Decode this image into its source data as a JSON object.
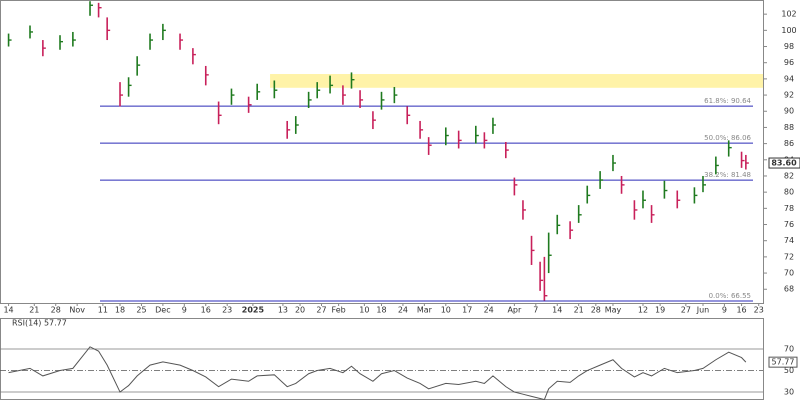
{
  "chart_data": [
    {
      "type": "ohlc",
      "x": [
        0,
        5,
        8,
        12,
        15,
        19,
        21,
        23,
        26,
        28,
        30,
        33,
        36,
        40,
        43,
        46,
        49,
        52,
        56,
        58,
        62,
        65,
        67,
        70,
        72,
        75,
        78,
        80,
        82,
        85,
        87,
        90,
        93,
        96,
        98,
        102,
        105,
        109,
        111,
        113,
        116,
        118,
        120,
        122,
        124,
        125,
        126,
        128,
        131,
        133,
        135,
        138,
        141,
        143,
        146,
        148,
        150,
        153,
        156,
        160,
        162,
        165,
        168,
        171,
        172
      ],
      "low": [
        98.0,
        99.0,
        96.8,
        97.6,
        98.0,
        101.8,
        101.6,
        98.8,
        90.6,
        91.8,
        94.4,
        97.6,
        98.8,
        97.6,
        95.8,
        93.2,
        88.4,
        90.8,
        89.8,
        91.4,
        91.6,
        86.6,
        87.2,
        90.4,
        91.6,
        92.2,
        90.8,
        92.8,
        90.4,
        87.8,
        90.2,
        91.0,
        88.4,
        86.6,
        84.6,
        85.8,
        85.4,
        86.0,
        85.4,
        87.2,
        84.2,
        79.6,
        76.6,
        71.0,
        67.8,
        66.6,
        70.0,
        74.8,
        74.2,
        76.2,
        78.6,
        80.4,
        82.6,
        79.8,
        76.6,
        78.0,
        76.2,
        79.2,
        78.0,
        78.6,
        80.0,
        82.2,
        84.4,
        83.0,
        82.8
      ],
      "high": [
        99.6,
        100.6,
        98.8,
        99.4,
        99.8,
        103.6,
        103.4,
        101.6,
        93.6,
        94.2,
        96.8,
        99.6,
        100.8,
        99.6,
        97.8,
        95.6,
        91.2,
        92.8,
        91.8,
        93.4,
        93.8,
        88.8,
        89.4,
        92.4,
        93.6,
        94.4,
        93.2,
        94.8,
        92.6,
        90.0,
        92.4,
        93.0,
        90.6,
        88.8,
        86.8,
        88.0,
        87.6,
        88.2,
        87.4,
        89.2,
        86.2,
        81.8,
        79.0,
        74.6,
        71.4,
        72.0,
        75.0,
        77.2,
        76.4,
        78.4,
        80.8,
        82.6,
        84.6,
        82.0,
        79.0,
        80.2,
        78.4,
        81.4,
        80.2,
        80.6,
        82.0,
        84.4,
        86.4,
        85.0,
        84.6
      ],
      "close": [
        98.8,
        99.8,
        97.8,
        98.6,
        98.8,
        103.1,
        102.8,
        100,
        92,
        93.2,
        95.7,
        98.8,
        100,
        98.8,
        97,
        94.5,
        89.5,
        92,
        90.8,
        92.4,
        92.6,
        87.7,
        88.3,
        91.4,
        92.6,
        93.2,
        92,
        93.9,
        91.4,
        88.9,
        91.4,
        92,
        89.5,
        87.7,
        85.8,
        87,
        86.4,
        87,
        86.4,
        88.3,
        85.2,
        80.9,
        77.8,
        72.8,
        69.1,
        67.2,
        72.2,
        75.9,
        75.3,
        77.2,
        79.6,
        81.5,
        83.6,
        80.9,
        77.8,
        79,
        77.2,
        80.2,
        79,
        79.6,
        80.9,
        83.3,
        85.5,
        83.9,
        83.6
      ],
      "up_color": "#1f7a1f",
      "down_color": "#c8205a",
      "xlim": [
        -2,
        176
      ],
      "ylim": [
        66.3,
        103.75
      ],
      "yticks": [
        68,
        70,
        72,
        74,
        76,
        78,
        80,
        82,
        84,
        86,
        88,
        90,
        92,
        94,
        96,
        98,
        100,
        102
      ],
      "xticks": [
        {
          "value": 0,
          "label": "14"
        },
        {
          "value": 6,
          "label": "21"
        },
        {
          "value": 11,
          "label": "28"
        },
        {
          "value": 16,
          "label": "Nov"
        },
        {
          "value": 22,
          "label": "11"
        },
        {
          "value": 26,
          "label": "18"
        },
        {
          "value": 31,
          "label": "25"
        },
        {
          "value": 36,
          "label": "Dec"
        },
        {
          "value": 41,
          "label": "9"
        },
        {
          "value": 46,
          "label": "16"
        },
        {
          "value": 51,
          "label": "23"
        },
        {
          "value": 57,
          "label": "2025"
        },
        {
          "value": 64,
          "label": "13"
        },
        {
          "value": 68,
          "label": "20"
        },
        {
          "value": 73,
          "label": "27"
        },
        {
          "value": 77,
          "label": "Feb"
        },
        {
          "value": 83,
          "label": "10"
        },
        {
          "value": 87,
          "label": "18"
        },
        {
          "value": 92,
          "label": "24"
        },
        {
          "value": 97,
          "label": "Mar"
        },
        {
          "value": 102,
          "label": "10"
        },
        {
          "value": 107,
          "label": "17"
        },
        {
          "value": 112,
          "label": "24"
        },
        {
          "value": 118,
          "label": "Apr"
        },
        {
          "value": 123,
          "label": "7"
        },
        {
          "value": 128,
          "label": "14"
        },
        {
          "value": 133,
          "label": "21"
        },
        {
          "value": 137,
          "label": "28"
        },
        {
          "value": 141,
          "label": "May"
        },
        {
          "value": 148,
          "label": "12"
        },
        {
          "value": 152,
          "label": "19"
        },
        {
          "value": 158,
          "label": "27"
        },
        {
          "value": 162,
          "label": "Jun"
        },
        {
          "value": 167,
          "label": "9"
        },
        {
          "value": 171,
          "label": "16"
        },
        {
          "value": 175,
          "label": "23"
        }
      ],
      "levels": [
        {
          "value": 90.64,
          "label": "61.8%: 90.64"
        },
        {
          "value": 86.06,
          "label": "50.0%: 86.06"
        },
        {
          "value": 81.48,
          "label": "38.2%: 81.48"
        },
        {
          "value": 66.55,
          "label": "0.0%: 66.55"
        }
      ],
      "level_color": "#2a2ab8",
      "zone": [
        92.9,
        94.6
      ],
      "zone_x": [
        61,
        176
      ],
      "zone_color": "#fff3a8",
      "last_price": {
        "value": 83.6,
        "label": "83.60"
      }
    },
    {
      "type": "line",
      "title": "RSI(14) 57.77",
      "x": [
        0,
        5,
        8,
        12,
        15,
        19,
        21,
        23,
        26,
        28,
        30,
        33,
        36,
        40,
        43,
        46,
        49,
        52,
        56,
        58,
        62,
        65,
        67,
        70,
        72,
        75,
        78,
        80,
        82,
        85,
        87,
        90,
        93,
        96,
        98,
        102,
        105,
        109,
        111,
        113,
        116,
        118,
        120,
        122,
        124,
        125,
        126,
        128,
        131,
        133,
        135,
        138,
        141,
        143,
        146,
        148,
        150,
        153,
        156,
        160,
        162,
        165,
        168,
        171,
        172
      ],
      "values": [
        48,
        52,
        45,
        50,
        52,
        72,
        68,
        55,
        30,
        36,
        45,
        55,
        58,
        55,
        50,
        44,
        35,
        42,
        40,
        45,
        46,
        35,
        38,
        47,
        50,
        52,
        48,
        54,
        47,
        40,
        47,
        50,
        43,
        38,
        33,
        38,
        37,
        40,
        38,
        45,
        35,
        30,
        28,
        26,
        24,
        23,
        33,
        40,
        39,
        45,
        50,
        55,
        60,
        52,
        44,
        48,
        45,
        52,
        48,
        50,
        52,
        60,
        67,
        62,
        57.77
      ],
      "color": "#555555",
      "xlim": [
        -2,
        176
      ],
      "ylim": [
        22.6,
        98.8
      ],
      "yticks": [
        70,
        50,
        30
      ],
      "last_value": {
        "value": 57.77,
        "label": "57.77"
      }
    }
  ]
}
